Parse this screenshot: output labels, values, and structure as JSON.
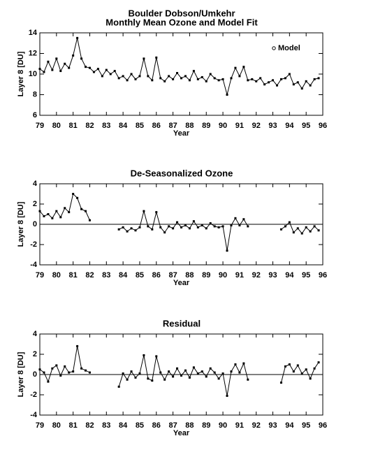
{
  "chart_data": [
    {
      "type": "line",
      "title": "Boulder Dobson/Umkehr",
      "subtitle": "Monthly Mean Ozone and Model Fit",
      "x_label": "Year",
      "y_label": "Layer 8 [DU]",
      "legend": "top-right",
      "xlim": [
        79,
        96
      ],
      "xticks": [
        79,
        80,
        81,
        82,
        83,
        84,
        85,
        86,
        87,
        88,
        89,
        90,
        91,
        92,
        93,
        94,
        95,
        96
      ],
      "ylim": [
        6,
        14
      ],
      "yticks": [
        6,
        8,
        10,
        12,
        14
      ],
      "x": [
        79,
        79.25,
        79.5,
        79.75,
        80,
        80.25,
        80.5,
        80.75,
        81,
        81.25,
        81.5,
        81.75,
        82,
        82.25,
        82.5,
        82.75,
        83,
        83.25,
        83.5,
        83.75,
        84,
        84.25,
        84.5,
        84.75,
        85,
        85.25,
        85.5,
        85.75,
        86,
        86.25,
        86.5,
        86.75,
        87,
        87.25,
        87.5,
        87.75,
        88,
        88.25,
        88.5,
        88.75,
        89,
        89.25,
        89.5,
        89.75,
        90,
        90.25,
        90.5,
        90.75,
        91,
        91.25,
        91.5,
        91.75,
        92,
        92.25,
        92.5,
        92.75,
        93,
        93.25,
        93.5,
        93.75,
        94,
        94.25,
        94.5,
        94.75,
        95,
        95.25,
        95.5,
        95.75
      ],
      "series": [
        {
          "name": "Model",
          "color": "#000000",
          "values": [
            10.5,
            10.2,
            11.2,
            10.4,
            11.5,
            10.3,
            11.0,
            10.6,
            11.8,
            13.5,
            11.5,
            10.7,
            10.6,
            10.2,
            10.5,
            9.8,
            10.4,
            10.0,
            10.3,
            9.6,
            9.8,
            9.4,
            10.0,
            9.5,
            9.8,
            11.5,
            9.8,
            9.4,
            11.6,
            9.6,
            9.3,
            9.8,
            9.5,
            10.1,
            9.6,
            9.8,
            9.4,
            10.3,
            9.5,
            9.7,
            9.3,
            10.0,
            9.6,
            9.4,
            9.5,
            8.0,
            9.6,
            10.6,
            9.8,
            10.7,
            9.4,
            9.5,
            9.3,
            9.6,
            9.0,
            9.2,
            9.4,
            8.9,
            9.5,
            9.6,
            10.0,
            9.0,
            9.2,
            8.6,
            9.3,
            8.9,
            9.5,
            9.6
          ]
        }
      ]
    },
    {
      "type": "line",
      "title": "De-Seasonalized Ozone",
      "x_label": "Year",
      "y_label": "Layer 8 [DU]",
      "zero_line": true,
      "xlim": [
        79,
        96
      ],
      "xticks": [
        79,
        80,
        81,
        82,
        83,
        84,
        85,
        86,
        87,
        88,
        89,
        90,
        91,
        92,
        93,
        94,
        95,
        96
      ],
      "ylim": [
        -4,
        4
      ],
      "yticks": [
        -4,
        -2,
        0,
        2,
        4
      ],
      "x": [
        79,
        79.25,
        79.5,
        79.75,
        80,
        80.25,
        80.5,
        80.75,
        81,
        81.25,
        81.5,
        81.75,
        82,
        82.25,
        82.5,
        82.75,
        83,
        83.25,
        83.5,
        83.75,
        84,
        84.25,
        84.5,
        84.75,
        85,
        85.25,
        85.5,
        85.75,
        86,
        86.25,
        86.5,
        86.75,
        87,
        87.25,
        87.5,
        87.75,
        88,
        88.25,
        88.5,
        88.75,
        89,
        89.25,
        89.5,
        89.75,
        90,
        90.25,
        90.5,
        90.75,
        91,
        91.25,
        91.5,
        91.75,
        92,
        92.25,
        92.5,
        92.75,
        93,
        93.25,
        93.5,
        93.75,
        94,
        94.25,
        94.5,
        94.75,
        95,
        95.25,
        95.5,
        95.75
      ],
      "series": [
        {
          "color": "#000000",
          "values": [
            1.3,
            0.8,
            1.0,
            0.6,
            1.3,
            0.7,
            1.6,
            1.2,
            3.0,
            2.6,
            1.5,
            1.3,
            0.4,
            null,
            null,
            null,
            null,
            null,
            null,
            -0.5,
            -0.3,
            -0.7,
            -0.4,
            -0.6,
            -0.3,
            1.3,
            -0.2,
            -0.5,
            1.2,
            -0.3,
            -0.8,
            -0.2,
            -0.4,
            0.2,
            -0.3,
            -0.1,
            -0.4,
            0.3,
            -0.3,
            -0.1,
            -0.4,
            0.1,
            -0.2,
            -0.3,
            -0.2,
            -2.6,
            -0.1,
            0.6,
            -0.1,
            0.5,
            -0.2,
            null,
            null,
            null,
            null,
            null,
            null,
            null,
            -0.5,
            -0.2,
            0.2,
            -0.8,
            -0.4,
            -0.9,
            -0.3,
            -0.7,
            -0.2,
            -0.6
          ]
        }
      ]
    },
    {
      "type": "line",
      "title": "Residual",
      "x_label": "Year",
      "y_label": "Layer 8 [DU]",
      "zero_line": true,
      "xlim": [
        79,
        96
      ],
      "xticks": [
        79,
        80,
        81,
        82,
        83,
        84,
        85,
        86,
        87,
        88,
        89,
        90,
        91,
        92,
        93,
        94,
        95,
        96
      ],
      "ylim": [
        -4,
        4
      ],
      "yticks": [
        -4,
        -2,
        0,
        2,
        4
      ],
      "x": [
        79,
        79.25,
        79.5,
        79.75,
        80,
        80.25,
        80.5,
        80.75,
        81,
        81.25,
        81.5,
        81.75,
        82,
        82.25,
        82.5,
        82.75,
        83,
        83.25,
        83.5,
        83.75,
        84,
        84.25,
        84.5,
        84.75,
        85,
        85.25,
        85.5,
        85.75,
        86,
        86.25,
        86.5,
        86.75,
        87,
        87.25,
        87.5,
        87.75,
        88,
        88.25,
        88.5,
        88.75,
        89,
        89.25,
        89.5,
        89.75,
        90,
        90.25,
        90.5,
        90.75,
        91,
        91.25,
        91.5,
        91.75,
        92,
        92.25,
        92.5,
        92.75,
        93,
        93.25,
        93.5,
        93.75,
        94,
        94.25,
        94.5,
        94.75,
        95,
        95.25,
        95.5,
        95.75
      ],
      "series": [
        {
          "color": "#000000",
          "values": [
            0.5,
            0.2,
            -0.7,
            0.6,
            0.9,
            -0.1,
            0.8,
            0.2,
            0.3,
            2.8,
            0.6,
            0.4,
            0.2,
            null,
            null,
            null,
            null,
            null,
            null,
            -1.2,
            0.1,
            -0.5,
            0.3,
            -0.3,
            0.1,
            1.9,
            -0.4,
            -0.6,
            1.8,
            0.2,
            -0.5,
            0.3,
            -0.2,
            0.6,
            -0.1,
            0.4,
            -0.3,
            0.7,
            0.1,
            0.3,
            -0.2,
            0.6,
            0.2,
            -0.4,
            0.1,
            -2.1,
            0.3,
            1.0,
            0.2,
            1.1,
            -0.5,
            null,
            null,
            null,
            null,
            null,
            null,
            null,
            -0.8,
            0.8,
            1.0,
            0.3,
            0.9,
            0.1,
            0.5,
            -0.4,
            0.6,
            1.2
          ]
        }
      ]
    }
  ]
}
